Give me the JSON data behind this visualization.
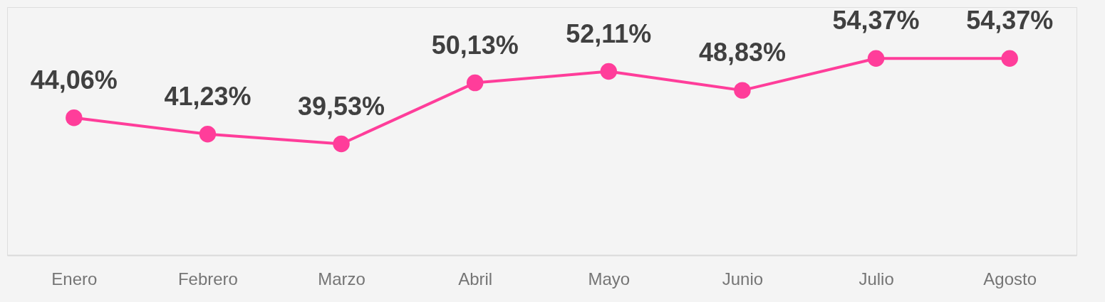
{
  "chart_data": {
    "type": "line",
    "categories": [
      "Enero",
      "Febrero",
      "Marzo",
      "Abril",
      "Mayo",
      "Junio",
      "Julio",
      "Agosto"
    ],
    "series": [
      {
        "color": "#ff3d9a",
        "values": [
          44.06,
          41.23,
          39.53,
          50.13,
          52.11,
          48.83,
          54.37,
          54.37
        ],
        "value_labels": [
          "44,06%",
          "41,23%",
          "39,53%",
          "50,13%",
          "52,11%",
          "48,83%",
          "54,37%",
          "54,37%"
        ]
      }
    ],
    "marker": "circle",
    "line_style": "solid",
    "grid": false,
    "tick_labels": "x"
  }
}
